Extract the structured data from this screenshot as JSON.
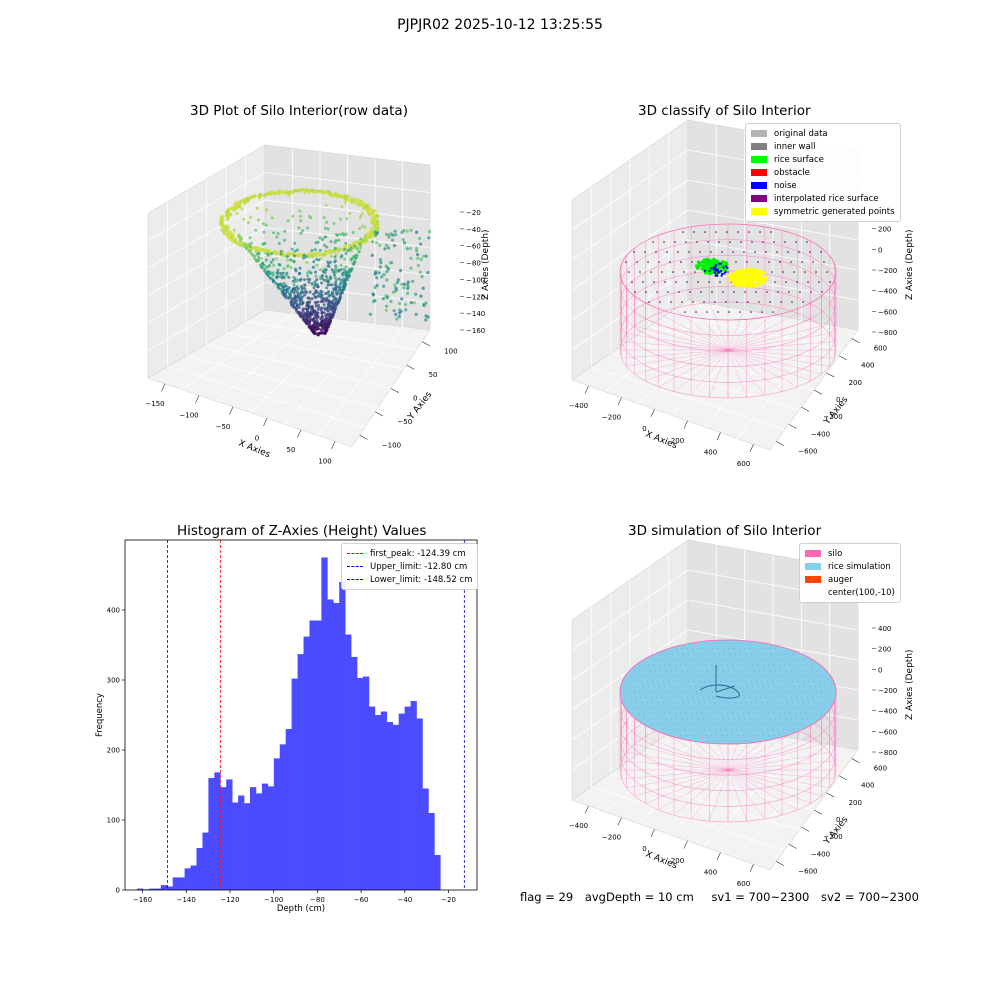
{
  "suptitle": "PJPJR02 2025-10-12 13:25:55",
  "footer": {
    "flag": "flag = 29",
    "avg_depth": "avgDepth = 10 cm",
    "sv1": "sv1 = 700~2300",
    "sv2": "sv2 = 700~2300"
  },
  "colors": {
    "histogram_bar": "#4b4bff",
    "first_peak": "#ff0000",
    "limits": "#0000cc",
    "silo": "#ff69b4",
    "rice_simulation": "#87ceeb",
    "auger": "#ff4500"
  },
  "chart_data": [
    {
      "type": "scatter",
      "projection": "3d",
      "title": "3D Plot of Silo Interior(row data)",
      "xlabel": "X Axies",
      "ylabel": "Y Axies",
      "zlabel": "Z Axies (Depth)",
      "x_ticks": [
        "−150",
        "−100",
        "−50",
        "0",
        "50",
        "100"
      ],
      "y_ticks": [
        "−100",
        "−50",
        "0",
        "50",
        "100"
      ],
      "z_ticks": [
        "−20",
        "−40",
        "−60",
        "−80",
        "−100",
        "−120",
        "−140",
        "−160"
      ],
      "xlim": [
        -165,
        130
      ],
      "ylim": [
        -120,
        120
      ],
      "zlim": [
        -170,
        -10
      ],
      "colormap": "viridis",
      "description": "funnel-shaped point cloud, deepest near x≈50 (z≈-165), rim at z≈-15"
    },
    {
      "type": "scatter",
      "projection": "3d",
      "title": "3D classify of Silo Interior",
      "xlabel": "X Axies",
      "ylabel": "Y Axies",
      "zlabel": "Z Axies (Depth)",
      "x_ticks": [
        "−400",
        "−200",
        "0",
        "200",
        "400",
        "600"
      ],
      "y_ticks": [
        "−600",
        "−400",
        "−200",
        "0",
        "200",
        "400",
        "600"
      ],
      "z_ticks": [
        "400",
        "200",
        "0",
        "−200",
        "−400",
        "−600",
        "−800"
      ],
      "legend": [
        {
          "label": "original data",
          "color": "#b3b3b3"
        },
        {
          "label": "inner wall",
          "color": "#808080"
        },
        {
          "label": "rice surface",
          "color": "#00ff00"
        },
        {
          "label": "obstacle",
          "color": "#ff0000"
        },
        {
          "label": "noise",
          "color": "#0000ff"
        },
        {
          "label": "interpolated rice surface",
          "color": "#800080"
        },
        {
          "label": "symmetric generated points",
          "color": "#ffff00"
        }
      ]
    },
    {
      "type": "bar",
      "title": "Histogram of Z-Axies (Height) Values",
      "xlabel": "Depth (cm)",
      "ylabel": "Frequency",
      "xlim": [
        -168,
        -7
      ],
      "ylim": [
        0,
        500
      ],
      "x_ticks": [
        -160,
        -140,
        -120,
        -100,
        -80,
        -60,
        -40,
        -20
      ],
      "y_ticks": [
        0,
        100,
        200,
        300,
        400
      ],
      "bin_start": -162.5,
      "bin_width": 2.72,
      "values": [
        2,
        1,
        2,
        2,
        7,
        5,
        18,
        18,
        31,
        35,
        60,
        82,
        160,
        168,
        147,
        158,
        125,
        135,
        124,
        147,
        138,
        152,
        148,
        188,
        208,
        230,
        302,
        337,
        362,
        385,
        385,
        475,
        415,
        410,
        440,
        365,
        333,
        303,
        305,
        262,
        250,
        255,
        240,
        236,
        252,
        262,
        270,
        245,
        145,
        110,
        50
      ],
      "vlines": [
        {
          "label": "first_peak: -124.39 cm",
          "x": -124.39,
          "color": "#ff0000"
        },
        {
          "label": "Upper_limit: -12.80 cm",
          "x": -12.8,
          "color": "#0000cc"
        },
        {
          "label": "Lower_limit: -148.52 cm",
          "x": -148.52,
          "color": "#0000cc"
        }
      ]
    },
    {
      "type": "scatter",
      "projection": "3d",
      "title": "3D simulation of Silo Interior",
      "xlabel": "X Axies",
      "ylabel": "Y Axies",
      "zlabel": "Z Axies (Depth)",
      "x_ticks": [
        "−400",
        "−200",
        "0",
        "200",
        "400",
        "600"
      ],
      "y_ticks": [
        "−600",
        "−400",
        "−200",
        "0",
        "200",
        "400",
        "600"
      ],
      "z_ticks": [
        "400",
        "200",
        "0",
        "−200",
        "−400",
        "−600",
        "−800"
      ],
      "legend": [
        {
          "label": "silo",
          "color": "#ff69b4"
        },
        {
          "label": "rice simulation",
          "color": "#87ceeb"
        },
        {
          "label": "auger",
          "color": "#ff4500"
        },
        {
          "label": "center(100,-10)",
          "color": ""
        }
      ]
    }
  ]
}
